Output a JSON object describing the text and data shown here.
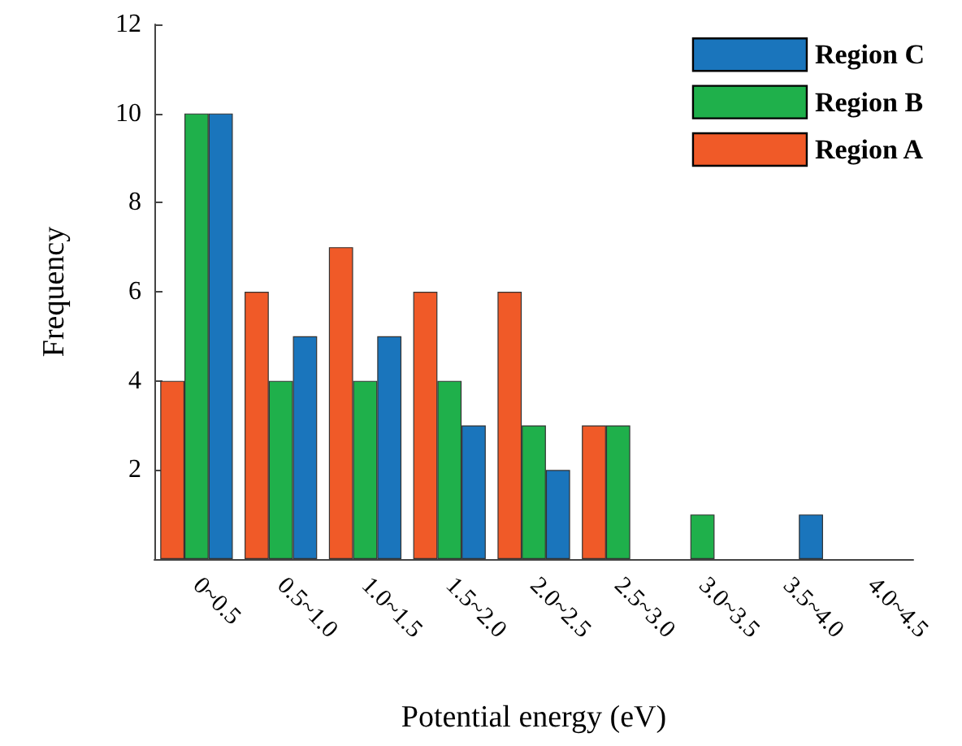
{
  "chart_data": {
    "type": "bar",
    "xlabel": "Potential energy (eV)",
    "ylabel": "Frequency",
    "categories": [
      "0~0.5",
      "0.5~1.0",
      "1.0~1.5",
      "1.5~2.0",
      "2.0~2.5",
      "2.5~3.0",
      "3.0~3.5",
      "3.5~4.0",
      "4.0~4.5"
    ],
    "series": [
      {
        "name": "Region A",
        "color": "#f05a28",
        "values": [
          4,
          6,
          7,
          6,
          6,
          3,
          0,
          0,
          0
        ]
      },
      {
        "name": "Region B",
        "color": "#1fb04b",
        "values": [
          10,
          4,
          4,
          4,
          3,
          3,
          1,
          0,
          0
        ]
      },
      {
        "name": "Region C",
        "color": "#1a75bc",
        "values": [
          10,
          5,
          5,
          3,
          2,
          0,
          0,
          1,
          0
        ]
      }
    ],
    "ylim": [
      0,
      12
    ],
    "yticks": [
      2,
      4,
      6,
      8,
      10,
      12
    ],
    "grid": false,
    "legend": "top right"
  }
}
